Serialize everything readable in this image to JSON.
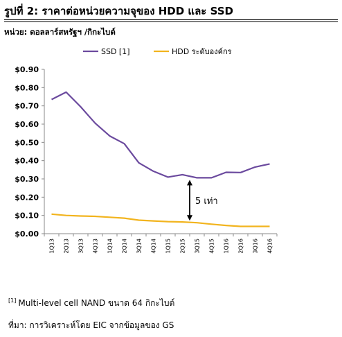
{
  "header": {
    "title": "รูปที่ 2: ราคาต่อหน่วยความจุของ HDD และ SSD",
    "unit_note": "หน่วย: ดอลลาร์สหรัฐฯ /กิกะไบต์"
  },
  "footer": {
    "footnote_marker": "[1]",
    "footnote_text": "Multi-level cell NAND ขนาด 64 กิกะไบต์",
    "source": "ที่มา: การวิเคราะห์โดย EIC จากข้อมูลของ GS"
  },
  "chart_data": {
    "type": "line",
    "title": "",
    "xlabel": "",
    "ylabel": "",
    "categories": [
      "1Q13",
      "2Q13",
      "3Q13",
      "4Q13",
      "1Q14",
      "2Q14",
      "3Q14",
      "4Q14",
      "1Q15",
      "2Q15",
      "3Q15",
      "4Q15",
      "1Q16",
      "2Q16",
      "3Q16",
      "4Q16"
    ],
    "ylim": [
      0,
      0.9
    ],
    "yticks": [
      "$0.00",
      "$0.10",
      "$0.20",
      "$0.30",
      "$0.40",
      "$0.50",
      "$0.60",
      "$0.70",
      "$0.80",
      "$0.90"
    ],
    "grid": false,
    "legend_position": "top",
    "series": [
      {
        "name": "SSD [1]",
        "color": "#6b4a9e",
        "values": [
          0.735,
          0.775,
          0.695,
          0.605,
          0.535,
          0.493,
          0.388,
          0.342,
          0.31,
          0.323,
          0.306,
          0.306,
          0.336,
          0.335,
          0.365,
          0.382
        ]
      },
      {
        "name": "HDD ระดับองค์กร",
        "color": "#f2b41e",
        "values": [
          0.107,
          0.1,
          0.097,
          0.095,
          0.09,
          0.085,
          0.074,
          0.07,
          0.066,
          0.064,
          0.06,
          0.052,
          0.045,
          0.04,
          0.04,
          0.04
        ]
      }
    ],
    "annotation": {
      "text": "5 เท่า",
      "category": "3Q15",
      "from_value": 0.06,
      "to_value": 0.306
    }
  }
}
